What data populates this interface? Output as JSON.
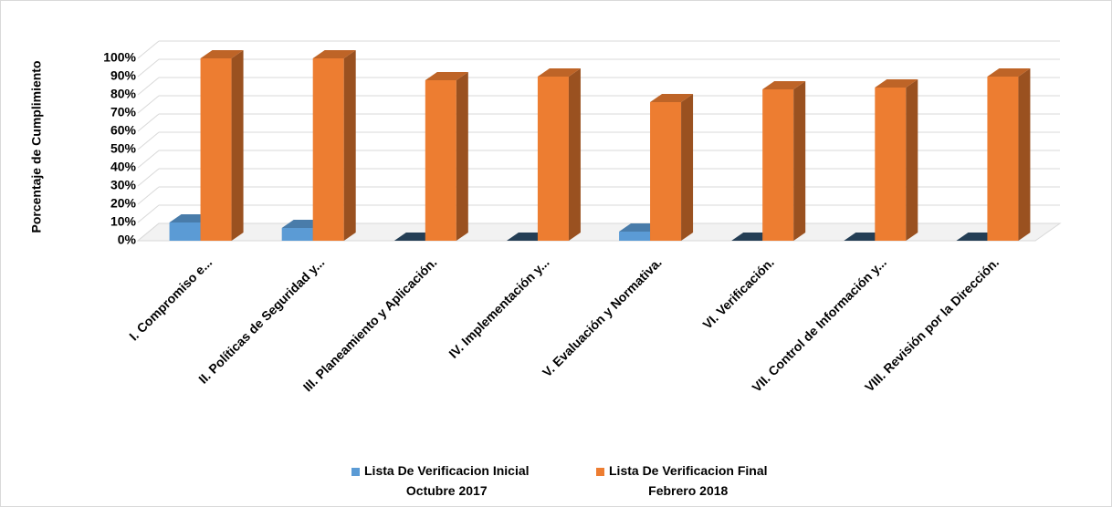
{
  "chart_data": {
    "type": "bar3d",
    "y_label": "Porcentaje de Cumplimiento",
    "categories": [
      "I. Compromiso e...",
      "II. Políticas de Seguridad y...",
      "III. Planeamiento y Aplicación.",
      "IV. Implementación y...",
      "V. Evaluación y Normativa.",
      "VI. Verificación.",
      "VII. Control de Información y...",
      "VIII. Revisión por la Dirección."
    ],
    "series": [
      {
        "name": "Lista De Verificacion Inicial\nOctubre 2017",
        "color": "#5b9bd5",
        "values": [
          10,
          7,
          0,
          0,
          5,
          0,
          0,
          0
        ]
      },
      {
        "name": "Lista De Verificacion Final\nFebrero 2018",
        "color": "#ed7d31",
        "values": [
          100,
          100,
          88,
          90,
          76,
          83,
          84,
          90
        ]
      }
    ],
    "ylim": [
      0,
      100
    ],
    "yticks": [
      {
        "value": 0,
        "label": "0%"
      },
      {
        "value": 10,
        "label": "10%"
      },
      {
        "value": 20,
        "label": "20%"
      },
      {
        "value": 30,
        "label": "30%"
      },
      {
        "value": 40,
        "label": "40%"
      },
      {
        "value": 50,
        "label": "50%"
      },
      {
        "value": 60,
        "label": "60%"
      },
      {
        "value": 70,
        "label": "70%"
      },
      {
        "value": 80,
        "label": "80%"
      },
      {
        "value": 90,
        "label": "90%"
      },
      {
        "value": 100,
        "label": "100%"
      }
    ],
    "grid": true
  }
}
